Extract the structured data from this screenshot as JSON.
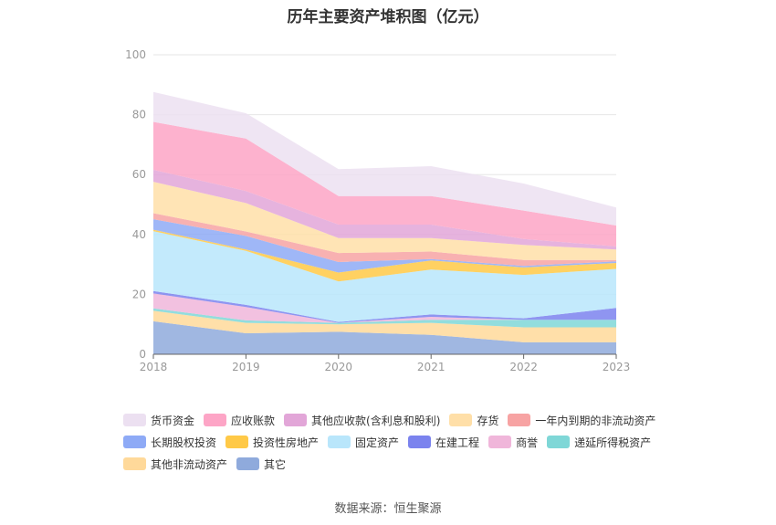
{
  "chart_data": {
    "type": "area",
    "stacked": true,
    "title": "历年主要资产堆积图（亿元）",
    "x": [
      "2018",
      "2019",
      "2020",
      "2021",
      "2022",
      "2023"
    ],
    "ylim": [
      0,
      100
    ],
    "yticks": [
      0,
      20,
      40,
      60,
      80,
      100
    ],
    "grid": true,
    "legend_position": "bottom",
    "series": [
      {
        "name": "其它",
        "color": "#8faadc",
        "values": [
          11.0,
          7.0,
          7.5,
          6.5,
          4.0,
          4.0
        ]
      },
      {
        "name": "其他非流动资产",
        "color": "#ffd99a",
        "values": [
          3.5,
          3.5,
          2.5,
          4.0,
          5.0,
          5.0
        ]
      },
      {
        "name": "递延所得税资产",
        "color": "#7fd7d7",
        "values": [
          0.8,
          0.8,
          0.5,
          1.0,
          2.5,
          2.5
        ]
      },
      {
        "name": "商誉",
        "color": "#f0b6da",
        "values": [
          5.0,
          4.5,
          0.0,
          1.0,
          0.0,
          0.0
        ]
      },
      {
        "name": "在建工程",
        "color": "#7b83ee",
        "values": [
          0.8,
          0.7,
          0.3,
          0.8,
          0.5,
          4.0
        ]
      },
      {
        "name": "固定资产",
        "color": "#b9e6fb",
        "values": [
          20.0,
          18.0,
          13.5,
          15.0,
          14.5,
          13.0
        ]
      },
      {
        "name": "投资性房地产",
        "color": "#ffc947",
        "values": [
          0.5,
          0.5,
          3.0,
          3.0,
          2.5,
          2.0
        ]
      },
      {
        "name": "长期股权投资",
        "color": "#8eaaf6",
        "values": [
          3.5,
          4.5,
          3.5,
          0.5,
          0.5,
          0.5
        ]
      },
      {
        "name": "一年内到期的非流动资产",
        "color": "#f7a3a3",
        "values": [
          2.0,
          1.5,
          3.0,
          2.5,
          2.0,
          0.5
        ]
      },
      {
        "name": "存货",
        "color": "#ffdfa8",
        "values": [
          10.5,
          9.5,
          5.0,
          4.5,
          5.0,
          3.5
        ]
      },
      {
        "name": "其他应收款(含利息和股利)",
        "color": "#e2a6d8",
        "values": [
          4.0,
          4.0,
          4.5,
          4.5,
          2.0,
          1.0
        ]
      },
      {
        "name": "应收账款",
        "color": "#fda5c6",
        "values": [
          16.0,
          17.5,
          9.5,
          9.5,
          9.5,
          7.0
        ]
      },
      {
        "name": "货币资金",
        "color": "#ece0f1",
        "values": [
          10.0,
          8.5,
          9.0,
          10.0,
          9.0,
          6.0
        ]
      }
    ],
    "legend_order": [
      [
        "货币资金",
        "应收账款",
        "其他应收款(含利息和股利)",
        "存货",
        "一年内到期的非流动资产"
      ],
      [
        "长期股权投资",
        "投资性房地产",
        "固定资产",
        "在建工程",
        "商誉",
        "递延所得税资产"
      ],
      [
        "其他非流动资产",
        "其它"
      ]
    ]
  },
  "source_note": "数据来源：恒生聚源"
}
